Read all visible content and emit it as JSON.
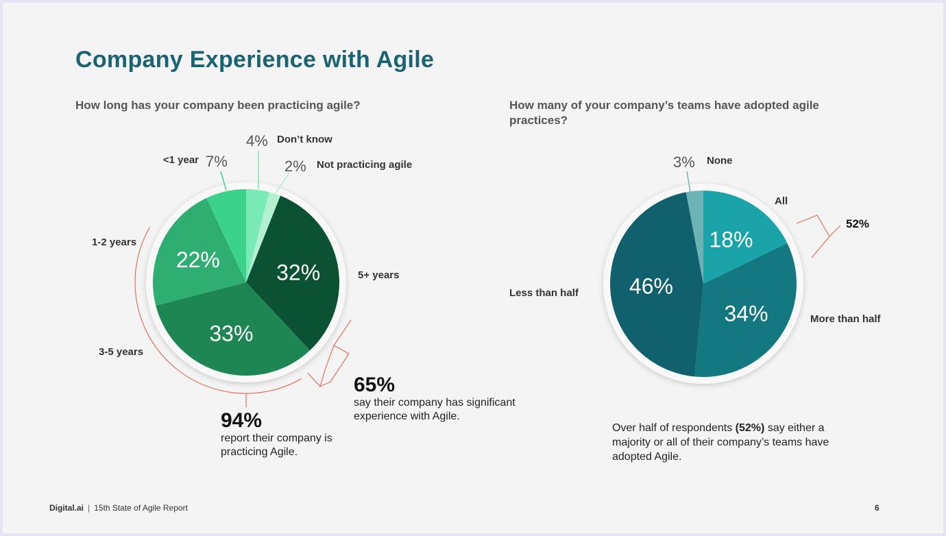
{
  "title": "Company Experience with Agile",
  "footer": {
    "brand": "Digital.ai",
    "separator": "|",
    "report": "15th State of Agile Report",
    "page": "6"
  },
  "chart_data": [
    {
      "type": "pie",
      "title": "How long has your company been practicing agile?",
      "slices": [
        {
          "label": "Don’t know",
          "value": 4,
          "display": "4%",
          "color": "#77eab6"
        },
        {
          "label": "Not practicing agile",
          "value": 2,
          "display": "2%",
          "color": "#b3f0d2"
        },
        {
          "label": "5+ years",
          "value": 32,
          "display": "32%",
          "color": "#0b5234"
        },
        {
          "label": "3-5 years",
          "value": 33,
          "display": "33%",
          "color": "#1e8653"
        },
        {
          "label": "1-2 years",
          "value": 22,
          "display": "22%",
          "color": "#2fae72"
        },
        {
          "label": "<1 year",
          "value": 7,
          "display": "7%",
          "color": "#3bd38b"
        }
      ],
      "callouts": [
        {
          "value": "94%",
          "text": "report their company is practicing Agile."
        },
        {
          "value": "65%",
          "text": "say their company has significant experience with Agile."
        }
      ]
    },
    {
      "type": "pie",
      "title": "How many of your company’s teams have adopted agile practices?",
      "slices": [
        {
          "label": "All",
          "value": 18,
          "display": "18%",
          "color": "#1aa3a9"
        },
        {
          "label": "More than half",
          "value": 34,
          "display": "34%",
          "color": "#147880"
        },
        {
          "label": "Less than half",
          "value": 46,
          "display": "46%",
          "color": "#10606e"
        },
        {
          "label": "None",
          "value": 3,
          "display": "3%",
          "color": "#6cb3b5"
        }
      ],
      "bracket_label": "52%",
      "summary": {
        "prefix": "Over half of respondents",
        "highlight": "(52%)",
        "suffix": "say either a majority or all of their company’s teams have adopted Agile."
      }
    }
  ]
}
